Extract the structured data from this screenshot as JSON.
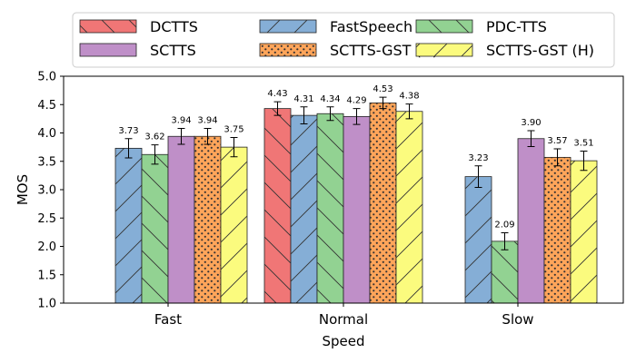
{
  "chart_data": {
    "type": "bar",
    "xlabel": "Speed",
    "ylabel": "MOS",
    "ylim": [
      1.0,
      5.0
    ],
    "yticks": [
      "1.0",
      "1.5",
      "2.0",
      "2.5",
      "3.0",
      "3.5",
      "4.0",
      "4.5",
      "5.0"
    ],
    "categories": [
      "Fast",
      "Normal",
      "Slow"
    ],
    "grid": false,
    "legend_position": "top",
    "series": [
      {
        "name": "DCTTS",
        "color": "#f07676",
        "hatch": "backslash",
        "values": [
          null,
          4.43,
          null
        ],
        "errors": [
          null,
          0.12,
          null
        ],
        "labels": [
          "",
          "4.43",
          ""
        ]
      },
      {
        "name": "FastSpeech",
        "color": "#85aed6",
        "hatch": "slash",
        "values": [
          3.73,
          4.31,
          3.23
        ],
        "errors": [
          0.17,
          0.15,
          0.19
        ],
        "labels": [
          "3.73",
          "4.31",
          "3.23"
        ]
      },
      {
        "name": "PDC-TTS",
        "color": "#92d292",
        "hatch": "backslash",
        "values": [
          3.62,
          4.34,
          2.09
        ],
        "errors": [
          0.17,
          0.12,
          0.15
        ],
        "labels": [
          "3.62",
          "4.34",
          "2.09"
        ]
      },
      {
        "name": "SCTTS",
        "color": "#bf8fc8",
        "hatch": "none",
        "values": [
          3.94,
          4.29,
          3.9
        ],
        "errors": [
          0.14,
          0.14,
          0.14
        ],
        "labels": [
          "3.94",
          "4.29",
          "3.90"
        ]
      },
      {
        "name": "SCTTS-GST (N)",
        "color": "#ffa55a",
        "hatch": "dots",
        "values": [
          3.94,
          4.53,
          3.57
        ],
        "errors": [
          0.14,
          0.1,
          0.15
        ],
        "labels": [
          "3.94",
          "4.53",
          "3.57"
        ]
      },
      {
        "name": "SCTTS-GST (H)",
        "color": "#fbfb7e",
        "hatch": "slash",
        "values": [
          3.75,
          4.38,
          3.51
        ],
        "errors": [
          0.17,
          0.13,
          0.17
        ],
        "labels": [
          "3.75",
          "4.38",
          "3.51"
        ]
      }
    ]
  }
}
